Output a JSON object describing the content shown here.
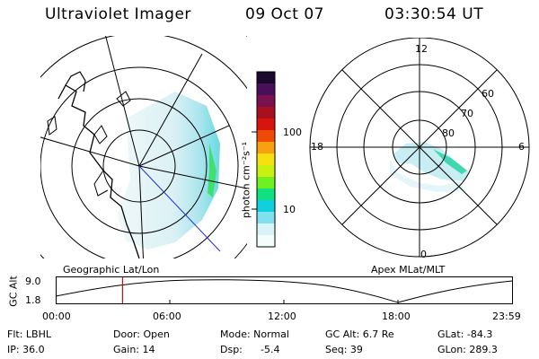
{
  "header": {
    "title": "Ultraviolet Imager",
    "date": "09 Oct 07",
    "time": "03:30:54 UT"
  },
  "colorbar": {
    "unit_label": "photon cm⁻²s⁻¹",
    "ticks": [
      "100",
      "10"
    ],
    "colors": [
      "#1a0a2e",
      "#4a0f5a",
      "#7a1050",
      "#a81020",
      "#d8140e",
      "#f04a08",
      "#f8a010",
      "#f8e010",
      "#c8f010",
      "#70f020",
      "#10e080",
      "#10d0e0",
      "#80e0f0",
      "#d8f4f8",
      "#f4fcfc"
    ]
  },
  "geo_panel": {
    "label": "Geographic Lat/Lon"
  },
  "apex_panel": {
    "label": "Apex MLat/MLT",
    "mlt_labels": {
      "top": "12",
      "left": "18",
      "right": "6",
      "bottom": "0"
    },
    "lat_labels": [
      "60",
      "70",
      "80"
    ]
  },
  "altitude_plot": {
    "ylabel": "GC Alt",
    "ymax": "9.0",
    "ymin": "1.8",
    "time_ticks": [
      "00:00",
      "06:00",
      "12:00",
      "18:00",
      "23:59"
    ],
    "current_time_hours": 3.515
  },
  "info": {
    "flt": "Flt: LBHL",
    "ip": "IP: 36.0",
    "door": "Door: Open",
    "gain": "Gain: 14",
    "mode": "Mode: Normal",
    "dsp": "Dsp:",
    "dsp_value": "-5.4",
    "gc_alt": "GC Alt: 6.7 Re",
    "seq": "Seq: 39",
    "glat": "GLat: -84.3",
    "glon": "GLon: 289.3"
  }
}
